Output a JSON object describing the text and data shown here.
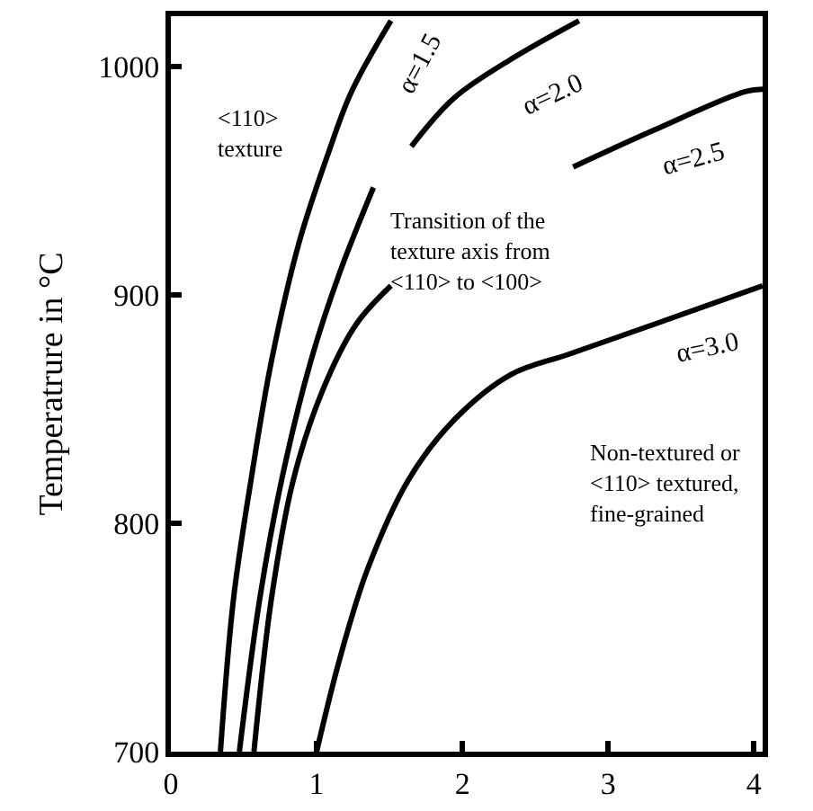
{
  "chart_data": {
    "type": "line",
    "ylabel": "Temperatrure in °C",
    "xlim": [
      0,
      4.06
    ],
    "ylim": [
      700,
      1022
    ],
    "xticks": [
      0,
      1,
      2,
      3,
      4
    ],
    "yticks": [
      700,
      800,
      900,
      1000
    ],
    "marker": "none",
    "line_style": "solid",
    "series": [
      {
        "name": "α=1.5",
        "color": "#000000",
        "x": [
          0.34,
          0.43,
          0.55,
          0.69,
          0.88,
          1.08,
          1.24,
          1.51
        ],
        "values": [
          700,
          767,
          819,
          871,
          923,
          962,
          989,
          1020
        ]
      },
      {
        "name": "α=2.0",
        "color": "#000000",
        "x": [
          0.47,
          0.61,
          0.76,
          0.96,
          1.16,
          1.39,
          1.52,
          1.65,
          1.94,
          2.33,
          2.8
        ],
        "values": [
          700,
          767,
          819,
          871,
          910,
          947,
          null,
          965,
          986,
          1003,
          1020
        ]
      },
      {
        "name": "α=2.5",
        "color": "#000000",
        "x": [
          0.57,
          0.69,
          0.84,
          1.04,
          1.27,
          1.51,
          2.1,
          2.76,
          3.31,
          3.94,
          4.06
        ],
        "values": [
          700,
          767,
          819,
          858,
          887,
          904,
          null,
          956,
          972,
          989,
          990
        ]
      },
      {
        "name": "α=3.0",
        "color": "#000000",
        "x": [
          1.0,
          1.16,
          1.35,
          1.63,
          1.94,
          2.33,
          2.73,
          3.31,
          4.06
        ],
        "values": [
          700,
          741,
          780,
          819,
          845,
          865,
          874,
          887,
          904
        ]
      }
    ],
    "annotations": [
      "<110>\ntexture",
      "Transition of the\ntexture axis from\n<110> to <100>",
      "Non-textured or\n<110> textured,\nfine-grained"
    ]
  }
}
